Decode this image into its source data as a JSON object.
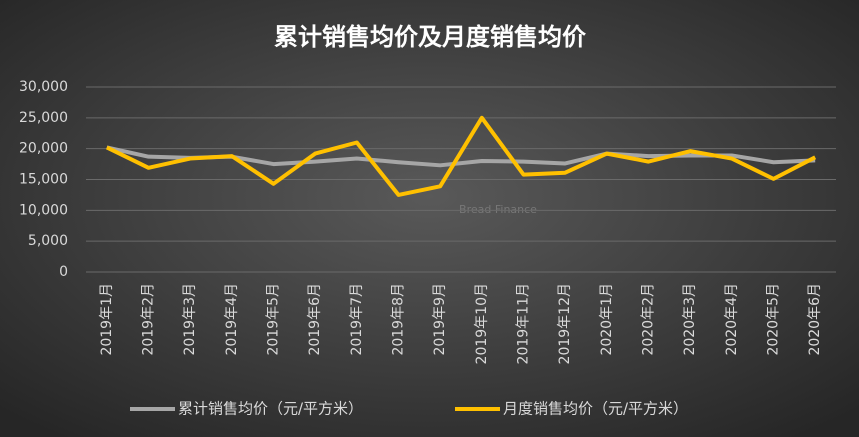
{
  "chart_data": {
    "type": "line",
    "title": "累计销售均价及月度销售均价",
    "watermark": "Bread Finance",
    "categories": [
      "2019年1月",
      "2019年2月",
      "2019年3月",
      "2019年4月",
      "2019年5月",
      "2019年6月",
      "2019年7月",
      "2019年8月",
      "2019年9月",
      "2019年10月",
      "2019年11月",
      "2019年12月",
      "2020年1月",
      "2020年2月",
      "2020年3月",
      "2020年4月",
      "2020年5月",
      "2020年6月"
    ],
    "series": [
      {
        "name": "累计销售均价（元/平方米）",
        "color": "#a6a6a6",
        "values": [
          20200,
          18700,
          18500,
          18700,
          17500,
          17900,
          18400,
          17800,
          17300,
          18000,
          17900,
          17600,
          19200,
          18800,
          18900,
          18900,
          17800,
          18100
        ]
      },
      {
        "name": "月度销售均价（元/平方米）",
        "color": "#ffc000",
        "values": [
          20200,
          16900,
          18400,
          18800,
          14300,
          19200,
          21000,
          12500,
          13900,
          25000,
          15800,
          16100,
          19200,
          17900,
          19600,
          18400,
          15100,
          18600
        ]
      }
    ],
    "ylim": [
      0,
      30000
    ],
    "yticks": [
      0,
      {
        "value": 5000,
        "label": "5,000"
      },
      {
        "value": 10000,
        "label": "10,000"
      },
      {
        "value": 15000,
        "label": "15,000"
      },
      {
        "value": 20000,
        "label": "20,000"
      },
      {
        "value": 25000,
        "label": "25,000"
      },
      {
        "value": 30000,
        "label": "30,000"
      }
    ],
    "grid": true,
    "legend": "bottom"
  }
}
